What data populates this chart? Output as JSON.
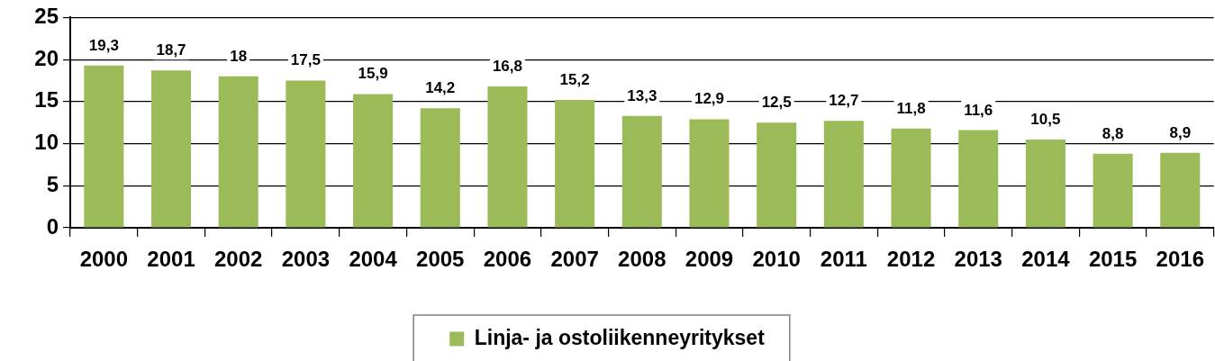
{
  "chart_data": {
    "type": "bar",
    "categories": [
      "2000",
      "2001",
      "2002",
      "2003",
      "2004",
      "2005",
      "2006",
      "2007",
      "2008",
      "2009",
      "2010",
      "2011",
      "2012",
      "2013",
      "2014",
      "2015",
      "2016"
    ],
    "series": [
      {
        "name": "Linja- ja ostoliikenneyritykset",
        "color": "#9bbb59",
        "values": [
          19.3,
          18.7,
          18,
          17.5,
          15.9,
          14.2,
          16.8,
          15.2,
          13.3,
          12.9,
          12.5,
          12.7,
          11.8,
          11.6,
          10.5,
          8.8,
          8.9
        ],
        "value_labels": [
          "19,3",
          "18,7",
          "18",
          "17,5",
          "15,9",
          "14,2",
          "16,8",
          "15,2",
          "13,3",
          "12,9",
          "12,5",
          "12,7",
          "11,8",
          "11,6",
          "10,5",
          "8,8",
          "8,9"
        ]
      }
    ],
    "ylim": [
      0,
      25
    ],
    "yticks": [
      0,
      5,
      10,
      15,
      20,
      25
    ],
    "grid": "y",
    "legend": "bottom"
  }
}
